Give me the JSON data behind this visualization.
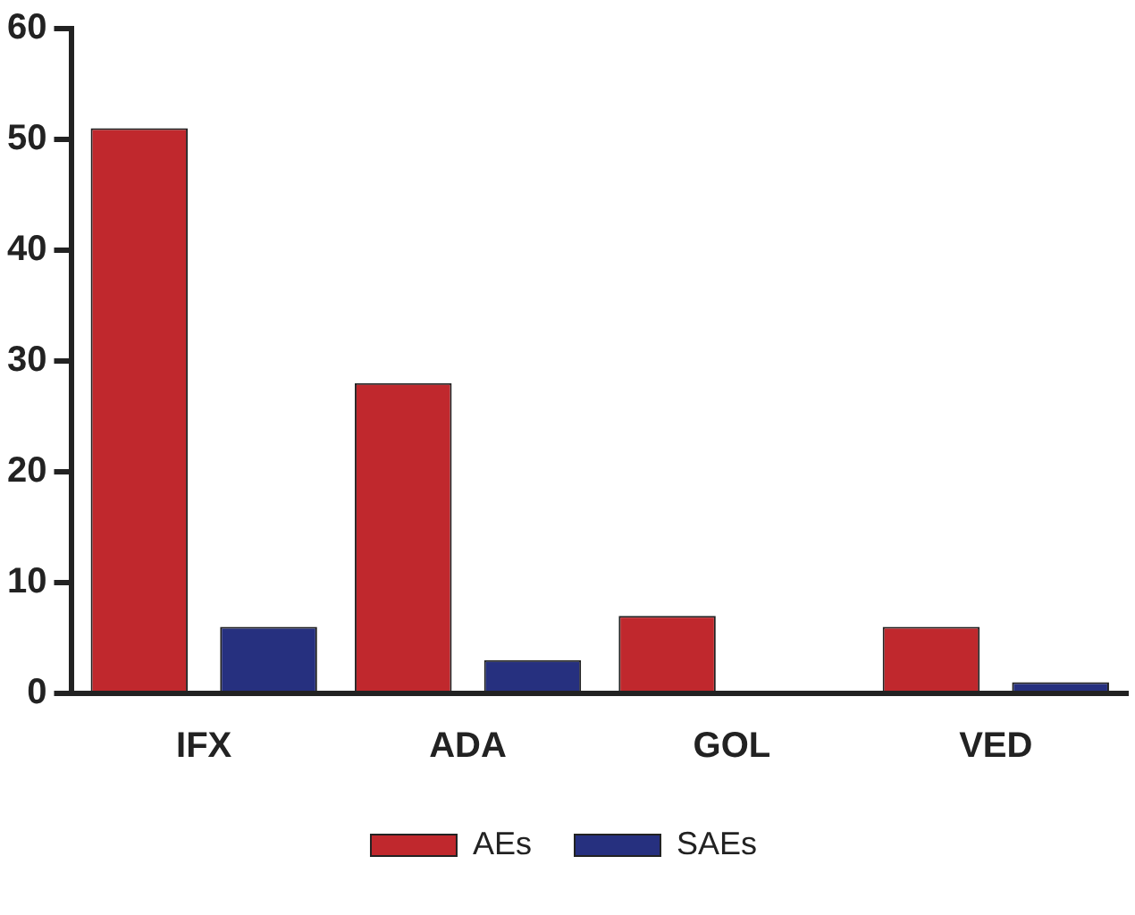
{
  "chart_data": {
    "type": "bar",
    "categories": [
      "IFX",
      "ADA",
      "GOL",
      "VED"
    ],
    "series": [
      {
        "name": "AEs",
        "color": "#c0282d",
        "values": [
          51,
          28,
          7,
          6
        ]
      },
      {
        "name": "SAEs",
        "color": "#26307f",
        "values": [
          6,
          3,
          0,
          1
        ]
      }
    ],
    "ylim": [
      0,
      60
    ],
    "yticks": [
      0,
      10,
      20,
      30,
      40,
      50,
      60
    ],
    "grid": false,
    "legend": "bottom"
  }
}
